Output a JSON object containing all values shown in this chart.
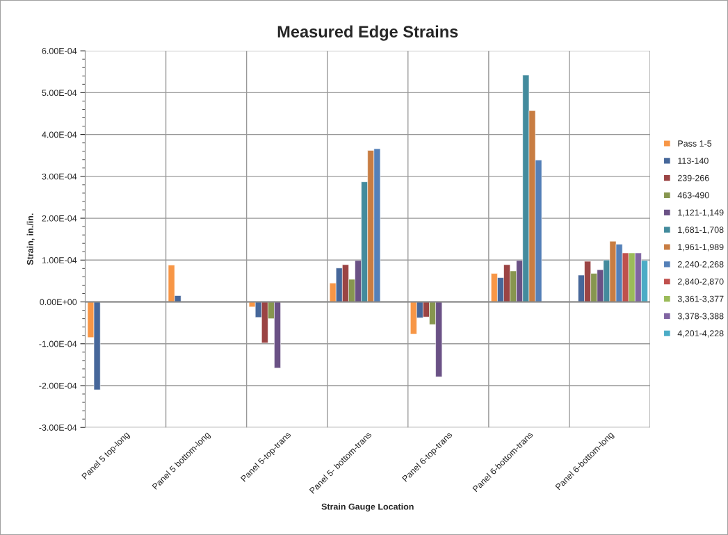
{
  "chart_data": {
    "type": "bar",
    "title": "Measured Edge Strains",
    "xlabel": "Strain Gauge Location",
    "ylabel": "Strain, in./in.",
    "categories": [
      "Panel 5 top-long",
      "Panel 5 bottom-long",
      "Panel 5-top-trans",
      "Panel 5- bottom-trans",
      "Panel 6-top-trans",
      "Panel 6-bottom-trans",
      "Panel 6-bottom-long"
    ],
    "series": [
      {
        "name": "Pass 1-5",
        "color": "#f79646",
        "values": [
          -8.5e-05,
          8.8e-05,
          -1.2e-05,
          4.5e-05,
          -7.7e-05,
          6.8e-05,
          null
        ]
      },
      {
        "name": "113-140",
        "color": "#46679a",
        "values": [
          -0.00021,
          1.5e-05,
          -3.7e-05,
          8.1e-05,
          -3.8e-05,
          5.8e-05,
          6.4e-05
        ]
      },
      {
        "name": "239-266",
        "color": "#9b4444",
        "values": [
          null,
          null,
          -9.8e-05,
          8.9e-05,
          -3.6e-05,
          8.9e-05,
          9.7e-05
        ]
      },
      {
        "name": "463-490",
        "color": "#87964f",
        "values": [
          null,
          null,
          -4e-05,
          5.4e-05,
          -5.4e-05,
          7.4e-05,
          6.8e-05
        ]
      },
      {
        "name": "1,121-1,149",
        "color": "#6a5185",
        "values": [
          null,
          null,
          -0.000158,
          9.9e-05,
          -0.000179,
          9.9e-05,
          7.7e-05
        ]
      },
      {
        "name": "1,681-1,708",
        "color": "#438b9d",
        "values": [
          null,
          null,
          null,
          0.000287,
          null,
          0.000542,
          0.0001
        ]
      },
      {
        "name": "1,961-1,989",
        "color": "#c87d42",
        "values": [
          null,
          null,
          null,
          0.000362,
          null,
          0.000457,
          0.000145
        ]
      },
      {
        "name": "2,240-2,268",
        "color": "#5480b8",
        "values": [
          null,
          null,
          null,
          0.000366,
          null,
          0.000339,
          0.000138
        ]
      },
      {
        "name": "2,840-2,870",
        "color": "#c0504d",
        "values": [
          null,
          null,
          null,
          null,
          null,
          null,
          0.000117
        ]
      },
      {
        "name": "3,361-3,377",
        "color": "#9bbb59",
        "values": [
          null,
          null,
          null,
          null,
          null,
          null,
          0.000117
        ]
      },
      {
        "name": "3,378-3,388",
        "color": "#8064a2",
        "values": [
          null,
          null,
          null,
          null,
          null,
          null,
          0.000117
        ]
      },
      {
        "name": "4,201-4,228",
        "color": "#4bacc6",
        "values": [
          null,
          null,
          null,
          null,
          null,
          null,
          9.9e-05
        ]
      }
    ],
    "ylim": [
      -0.0003,
      0.0006
    ],
    "yticks": [
      {
        "value": -0.0003,
        "label": "-3.00E-04"
      },
      {
        "value": -0.0002,
        "label": "-2.00E-04"
      },
      {
        "value": -0.0001,
        "label": "-1.00E-04"
      },
      {
        "value": 0,
        "label": "0.00E+00"
      },
      {
        "value": 0.0001,
        "label": "1.00E-04"
      },
      {
        "value": 0.0002,
        "label": "2.00E-04"
      },
      {
        "value": 0.0003,
        "label": "3.00E-04"
      },
      {
        "value": 0.0004,
        "label": "4.00E-04"
      },
      {
        "value": 0.0005,
        "label": "5.00E-04"
      },
      {
        "value": 0.0006,
        "label": "6.00E-04"
      }
    ],
    "grid": true,
    "legend": "right"
  }
}
